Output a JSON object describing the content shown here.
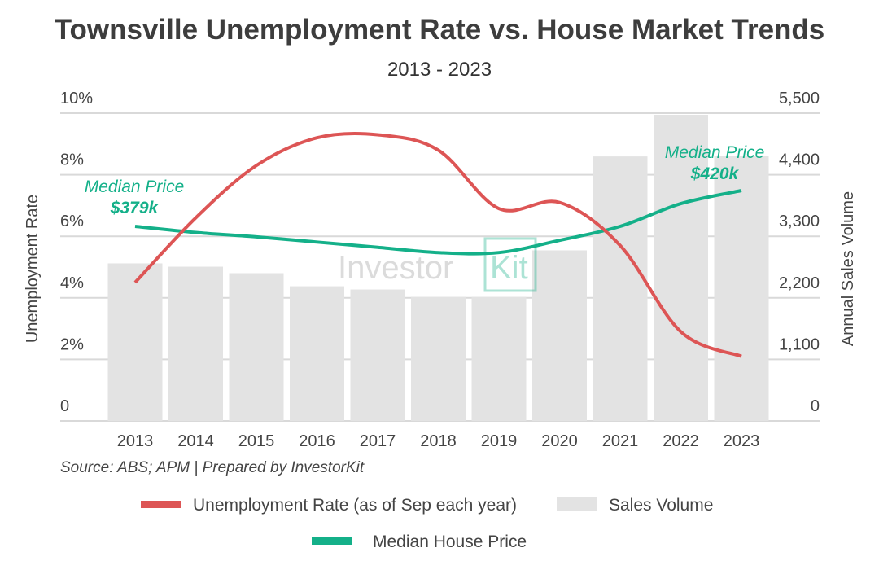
{
  "chart_data": {
    "type": "bar+line",
    "title": "Townsville Unemployment Rate vs. House Market Trends",
    "subtitle": "2013 - 2023",
    "categories": [
      "2013",
      "2014",
      "2015",
      "2016",
      "2017",
      "2018",
      "2019",
      "2020",
      "2021",
      "2022",
      "2023"
    ],
    "series": [
      {
        "name": "Unemployment Rate (as of Sep each year)",
        "type": "line",
        "axis": "left",
        "color": "#dd5555",
        "values": [
          4.5,
          6.6,
          8.3,
          9.2,
          9.3,
          8.8,
          6.9,
          7.1,
          5.7,
          2.9,
          2.1
        ]
      },
      {
        "name": "Sales Volume",
        "type": "bar",
        "axis": "right",
        "color": "#e3e3e3",
        "values": [
          2816,
          2757,
          2641,
          2407,
          2349,
          2218,
          2218,
          3049,
          4727,
          5471,
          4740
        ]
      },
      {
        "name": "Median House Price",
        "type": "line",
        "axis": "none",
        "color": "#14b089",
        "unit": "$k",
        "values": [
          379,
          372,
          367,
          361,
          355,
          349,
          349,
          363,
          379,
          405,
          420
        ]
      }
    ],
    "ylabel": "Unemployment Rate",
    "ylim": [
      0,
      10
    ],
    "yticks": [
      "0",
      "2%",
      "4%",
      "6%",
      "8%",
      "10%"
    ],
    "y2label": "Annual Sales Volume",
    "y2lim": [
      0,
      5500
    ],
    "y2ticks": [
      "0",
      "1,100",
      "2,200",
      "3,300",
      "4,400",
      "5,500"
    ],
    "grid": true,
    "legend_position": "bottom",
    "annotations": [
      {
        "label": "Median Price",
        "value": "$379k",
        "category": "2013"
      },
      {
        "label": "Median Price",
        "value": "$420k",
        "category": "2023"
      }
    ],
    "source": "Source: ABS; APM | Prepared by InvestorKit"
  },
  "watermark": "InvestorKit"
}
